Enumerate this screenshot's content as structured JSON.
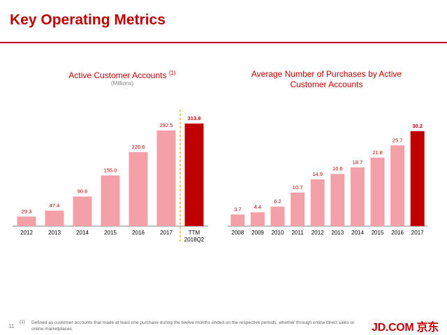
{
  "page": {
    "title": "Key Operating Metrics",
    "page_number": "11",
    "footnote_marker": "(1)",
    "footnote_text": "Defined as customer accounts that made at least one purchase during the twelve months ended on the respective periods, whether through online direct sales or online marketplaces.",
    "logo": "JD.COM 京东"
  },
  "colors": {
    "accent": "#c00000",
    "bar": "#f4a0a8",
    "highlight": "#c00000",
    "label": "#c00000",
    "axis": "#808080"
  },
  "chart_data": [
    {
      "type": "bar",
      "title": "Active Customer Accounts",
      "title_superscript": "(1)",
      "subtitle": "(Millions)",
      "categories": [
        "2012",
        "2013",
        "2014",
        "2015",
        "2016",
        "2017",
        "TTM\n2018Q2"
      ],
      "values": [
        29.3,
        47.4,
        90.6,
        155.0,
        226.6,
        292.5,
        313.8
      ],
      "labels": [
        "29.3",
        "47.4",
        "90.6",
        "155.0",
        "226.6",
        "292.5",
        "313.8"
      ],
      "highlight_index": 6,
      "separator_before_index": 6,
      "ylim": [
        0,
        313.8
      ],
      "xlabel": "",
      "ylabel": "",
      "grid": false
    },
    {
      "type": "bar",
      "title": "Average Number of Purchases by Active Customer Accounts",
      "subtitle": "",
      "categories": [
        "2008",
        "2009",
        "2010",
        "2011",
        "2012",
        "2013",
        "2014",
        "2015",
        "2016",
        "2017"
      ],
      "values": [
        3.7,
        4.4,
        6.2,
        10.7,
        14.9,
        16.6,
        18.7,
        21.8,
        25.7,
        30.2
      ],
      "labels": [
        "3.7",
        "4.4",
        "6.2",
        "10.7",
        "14.9",
        "16.6",
        "18.7",
        "21.8",
        "25.7",
        "30.2"
      ],
      "highlight_index": 9,
      "ylim": [
        0,
        30.2
      ],
      "xlabel": "",
      "ylabel": "",
      "grid": false
    }
  ]
}
